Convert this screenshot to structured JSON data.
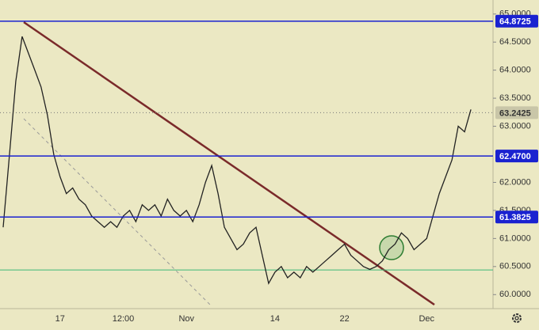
{
  "chart_data": {
    "type": "line",
    "categories": [
      null,
      null,
      null,
      null,
      null,
      null,
      null,
      null,
      null,
      "17",
      null,
      null,
      null,
      null,
      null,
      null,
      null,
      null,
      null,
      "12:00",
      null,
      null,
      null,
      null,
      null,
      null,
      null,
      null,
      null,
      "Nov",
      null,
      null,
      null,
      null,
      null,
      null,
      null,
      null,
      null,
      null,
      null,
      null,
      null,
      "14",
      null,
      null,
      null,
      null,
      null,
      null,
      null,
      null,
      null,
      null,
      "22",
      null,
      null,
      null,
      null,
      null,
      null,
      null,
      null,
      null,
      null,
      null,
      null,
      "Dec",
      null,
      null,
      null,
      null,
      null,
      null,
      null,
      null,
      null,
      null
    ],
    "series": [
      {
        "color": "#222222",
        "values": [
          61.2,
          62.5,
          63.8,
          64.6,
          64.3,
          64.0,
          63.7,
          63.2,
          62.5,
          62.1,
          61.8,
          61.9,
          61.7,
          61.6,
          61.4,
          61.3,
          61.2,
          61.3,
          61.2,
          61.4,
          61.5,
          61.3,
          61.6,
          61.5,
          61.6,
          61.4,
          61.7,
          61.5,
          61.4,
          61.5,
          61.3,
          61.6,
          62.0,
          62.3,
          61.8,
          61.2,
          61.0,
          60.8,
          60.9,
          61.1,
          61.2,
          60.7,
          60.2,
          60.4,
          60.5,
          60.3,
          60.4,
          60.3,
          60.5,
          60.4,
          60.5,
          60.6,
          60.7,
          60.8,
          60.9,
          60.7,
          60.6,
          60.5,
          60.45,
          60.5,
          60.6,
          60.8,
          60.9,
          61.1,
          61.0,
          60.8,
          60.9,
          61.0,
          61.4,
          61.8,
          62.1,
          62.4,
          63.0,
          62.9,
          63.3,
          null,
          null,
          null
        ]
      }
    ],
    "ylim": [
      59.75,
      65.25
    ],
    "yticks": [
      {
        "value": 60,
        "label": "60.0000"
      },
      {
        "value": 60.5,
        "label": "60.5000"
      },
      {
        "value": 61,
        "label": "61.0000"
      },
      {
        "value": 61.5,
        "label": "61.5000"
      },
      {
        "value": 62,
        "label": "62.0000"
      },
      {
        "value": 63,
        "label": "63.0000"
      },
      {
        "value": 63.5,
        "label": "63.5000"
      },
      {
        "value": 64,
        "label": "64.0000"
      },
      {
        "value": 64.5,
        "label": "64.5000"
      },
      {
        "value": 65,
        "label": "65.0000"
      }
    ],
    "levels": [
      {
        "value": 64.8725,
        "label": "64.8725"
      },
      {
        "value": 62.47,
        "label": "62.4700"
      },
      {
        "value": 61.3825,
        "label": "61.3825"
      }
    ],
    "level_color": "#1a22d0",
    "last_price": {
      "value": 63.2425,
      "label": "63.2425"
    },
    "support_line": 60.44,
    "support_color": "#3cb878"
  }
}
